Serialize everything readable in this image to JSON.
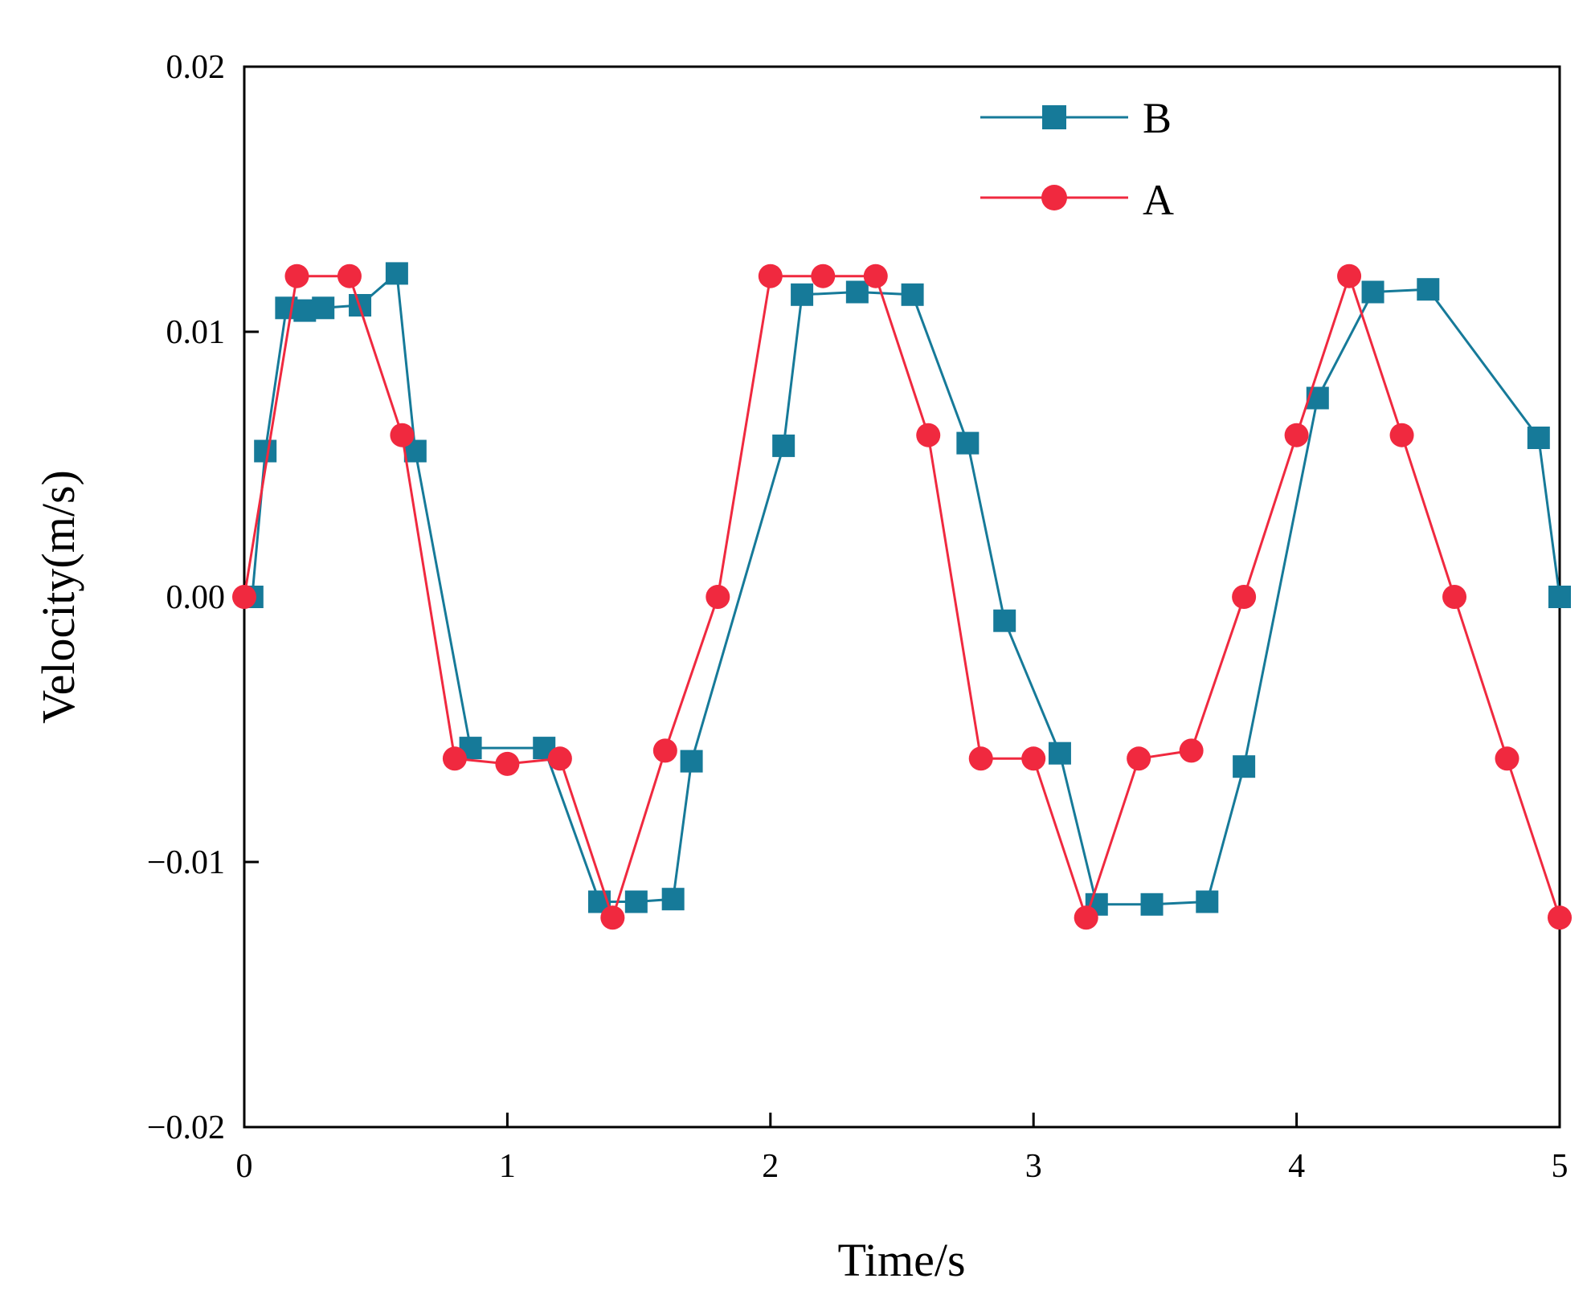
{
  "chart_data": {
    "type": "line",
    "title": "",
    "xlabel": "Time/s",
    "ylabel": "Velocity(m/s)",
    "xlim": [
      0,
      5
    ],
    "ylim": [
      -0.02,
      0.02
    ],
    "x_ticks": [
      0,
      1,
      2,
      3,
      4,
      5
    ],
    "x_tick_labels": [
      "0",
      "1",
      "2",
      "3",
      "4",
      "5"
    ],
    "y_ticks": [
      0.02,
      0.01,
      0.0,
      -0.01,
      -0.02
    ],
    "y_tick_labels": [
      "0.02",
      "0.01",
      "0.00",
      "−0.01",
      "−0.02"
    ],
    "grid": false,
    "legend_position": "top-right",
    "series": [
      {
        "name": "B",
        "color": "#167a99",
        "marker": "square",
        "x": [
          0.03,
          0.08,
          0.16,
          0.23,
          0.3,
          0.44,
          0.58,
          0.65,
          0.86,
          1.14,
          1.35,
          1.49,
          1.63,
          1.7,
          2.05,
          2.12,
          2.33,
          2.54,
          2.75,
          2.89,
          3.1,
          3.24,
          3.45,
          3.66,
          3.8,
          4.08,
          4.29,
          4.5,
          4.92,
          5.0
        ],
        "y": [
          0.0,
          0.0055,
          0.0109,
          0.0108,
          0.0109,
          0.011,
          0.0122,
          0.0055,
          -0.0057,
          -0.0057,
          -0.0115,
          -0.0115,
          -0.0114,
          -0.0062,
          0.0057,
          0.0114,
          0.0115,
          0.0114,
          0.0058,
          -0.0009,
          -0.0059,
          -0.0116,
          -0.0116,
          -0.0115,
          -0.0064,
          0.0075,
          0.0115,
          0.0116,
          0.006,
          0.0
        ]
      },
      {
        "name": "A",
        "color": "#f0293f",
        "marker": "circle",
        "x": [
          0.0,
          0.2,
          0.4,
          0.6,
          0.8,
          1.0,
          1.2,
          1.4,
          1.6,
          1.8,
          2.0,
          2.2,
          2.4,
          2.6,
          2.8,
          3.0,
          3.2,
          3.4,
          3.6,
          3.8,
          4.0,
          4.2,
          4.4,
          4.6,
          4.8,
          5.0
        ],
        "y": [
          0.0,
          0.0121,
          0.0121,
          0.0061,
          -0.0061,
          -0.0063,
          -0.0061,
          -0.0121,
          -0.0058,
          0.0,
          0.0121,
          0.0121,
          0.0121,
          0.0061,
          -0.0061,
          -0.0061,
          -0.0121,
          -0.0061,
          -0.0058,
          0.0,
          0.0061,
          0.0121,
          0.0061,
          0.0,
          -0.0061,
          -0.0121
        ]
      }
    ]
  }
}
